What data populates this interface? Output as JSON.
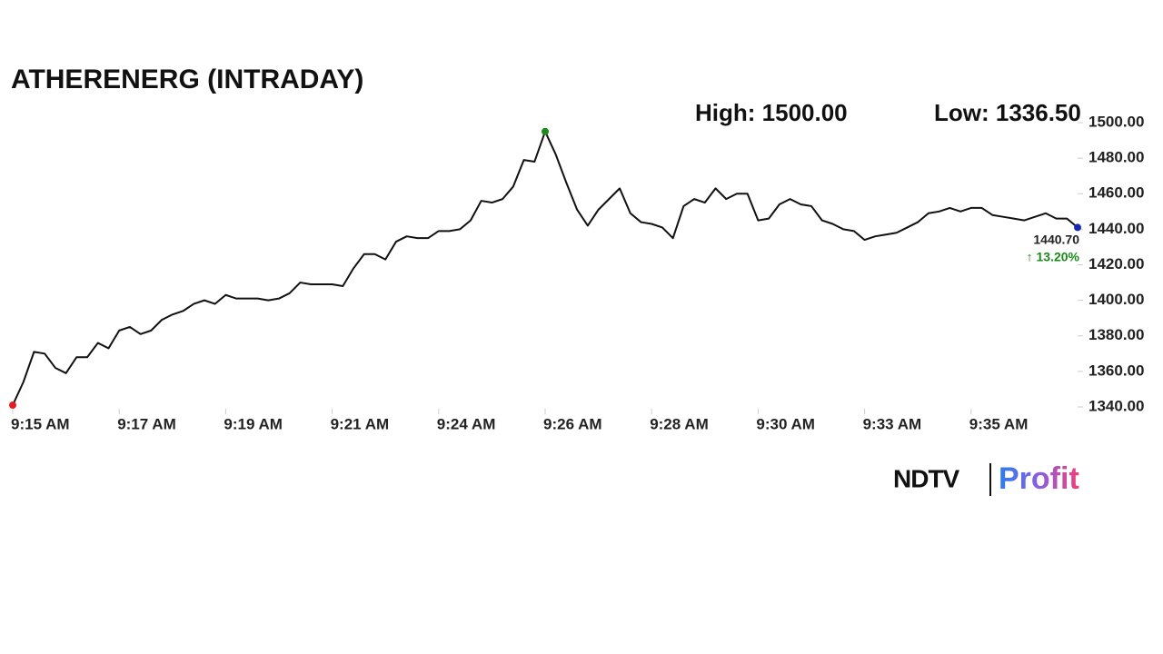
{
  "chart_data": {
    "type": "line",
    "title": "ATHERENERG (INTRADAY)",
    "annotations": {
      "high": "High: 1500.00",
      "low": "Low: 1336.50",
      "last": "1440.70",
      "change": "↑ 13.20%"
    },
    "brand": {
      "name": "NDTV",
      "product": "Profit"
    },
    "xlim": [
      0,
      100
    ],
    "xticks": [
      {
        "value": 0,
        "label": "9:15 AM"
      },
      {
        "value": 10,
        "label": "9:17 AM"
      },
      {
        "value": 20,
        "label": "9:19 AM"
      },
      {
        "value": 30,
        "label": "9:21 AM"
      },
      {
        "value": 40,
        "label": "9:24 AM"
      },
      {
        "value": 50,
        "label": "9:26 AM"
      },
      {
        "value": 60,
        "label": "9:28 AM"
      },
      {
        "value": 70,
        "label": "9:30 AM"
      },
      {
        "value": 80,
        "label": "9:33 AM"
      },
      {
        "value": 90,
        "label": "9:35 AM"
      }
    ],
    "ylim": [
      1340,
      1500
    ],
    "yticks": [
      {
        "value": 1340,
        "label": "1340.00"
      },
      {
        "value": 1360,
        "label": "1360.00"
      },
      {
        "value": 1380,
        "label": "1380.00"
      },
      {
        "value": 1400,
        "label": "1400.00"
      },
      {
        "value": 1420,
        "label": "1420.00"
      },
      {
        "value": 1440,
        "label": "1440.00"
      },
      {
        "value": 1460,
        "label": "1460.00"
      },
      {
        "value": 1480,
        "label": "1480.00"
      },
      {
        "value": 1500,
        "label": "1500.00"
      }
    ],
    "color": "#111111",
    "marker_colors": {
      "first": "#e02020",
      "peak": "#1a8a1a",
      "last": "#1a2ab0"
    },
    "values": [
      1341,
      1354,
      1371,
      1370,
      1362,
      1359,
      1368,
      1368,
      1376,
      1373,
      1383,
      1385,
      1381,
      1383,
      1389,
      1392,
      1394,
      1398,
      1400,
      1398,
      1403,
      1401,
      1401,
      1401,
      1400,
      1401,
      1404,
      1410,
      1409,
      1409,
      1409,
      1408,
      1418,
      1426,
      1426,
      1423,
      1433,
      1436,
      1435,
      1435,
      1439,
      1439,
      1440,
      1445,
      1456,
      1455,
      1457,
      1464,
      1479,
      1478,
      1495,
      1482,
      1466,
      1451,
      1442,
      1451,
      1457,
      1463,
      1449,
      1444,
      1443,
      1441,
      1435,
      1453,
      1457,
      1455,
      1463,
      1457,
      1460,
      1460,
      1445,
      1446,
      1454,
      1457,
      1454,
      1453,
      1445,
      1443,
      1440,
      1439,
      1434,
      1436,
      1437,
      1438,
      1441,
      1444,
      1449,
      1450,
      1452,
      1450,
      1452,
      1452,
      1448,
      1447,
      1446,
      1445,
      1447,
      1449,
      1446,
      1446,
      1441
    ]
  }
}
